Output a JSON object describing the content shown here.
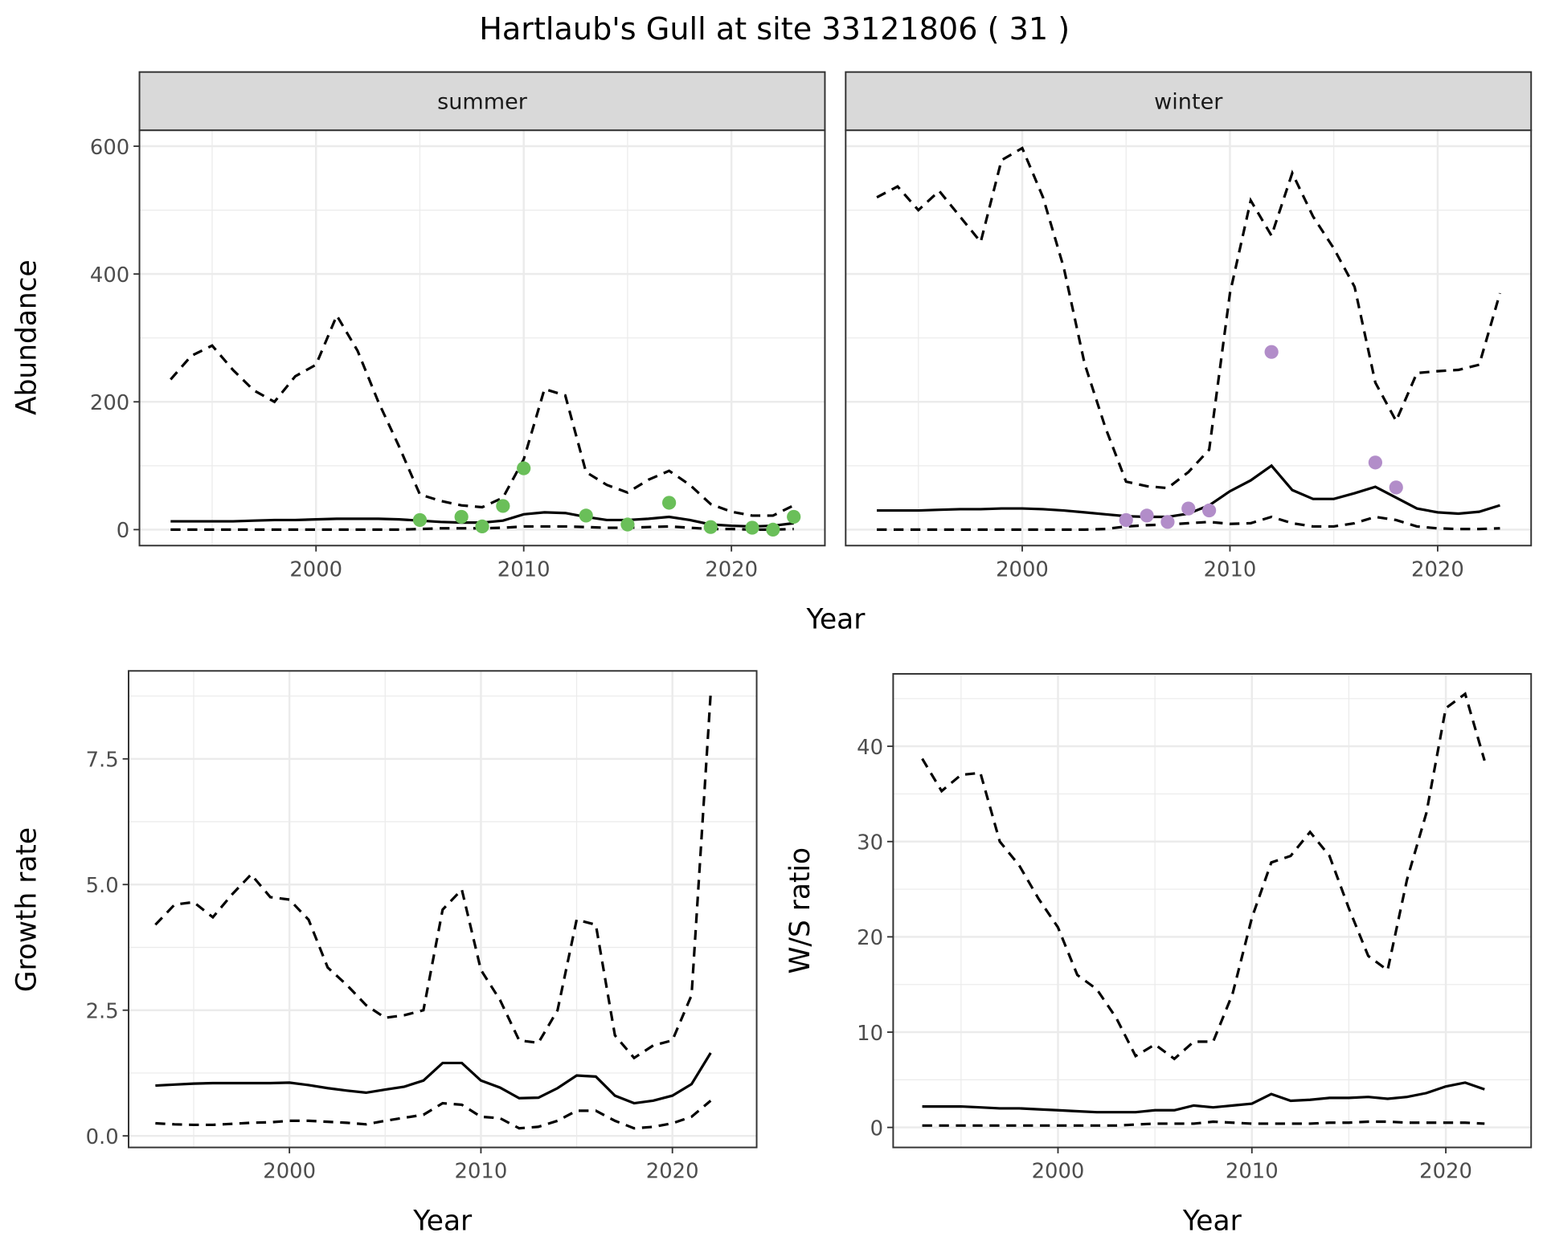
{
  "title": "Hartlaub's Gull at site 33121806 ( 31 )",
  "colors": {
    "summer_points": "#6abf59",
    "winter_points": "#b28dc9",
    "lines": "#000000",
    "strip_bg": "#d9d9d9"
  },
  "chart_data": [
    {
      "type": "line",
      "panel": "summer",
      "strip_label": "summer",
      "ylabel": "Abundance",
      "xlabel": "Year",
      "xlim": [
        1991.5,
        2024.5
      ],
      "ylim": [
        -25,
        625
      ],
      "xticks": [
        2000,
        2010,
        2020
      ],
      "yticks": [
        0,
        200,
        400,
        600
      ],
      "x": [
        1993,
        1994,
        1995,
        1996,
        1997,
        1998,
        1999,
        2000,
        2001,
        2002,
        2003,
        2004,
        2005,
        2006,
        2007,
        2008,
        2009,
        2010,
        2011,
        2012,
        2013,
        2014,
        2015,
        2016,
        2017,
        2018,
        2019,
        2020,
        2021,
        2022,
        2023
      ],
      "series": [
        {
          "name": "upper",
          "style": "dashed",
          "values": [
            235,
            272,
            288,
            250,
            218,
            200,
            240,
            258,
            335,
            280,
            200,
            130,
            55,
            45,
            38,
            35,
            50,
            110,
            220,
            210,
            90,
            70,
            58,
            78,
            92,
            70,
            40,
            28,
            22,
            22,
            38
          ]
        },
        {
          "name": "mean",
          "style": "solid",
          "values": [
            13,
            13,
            13,
            13,
            14,
            15,
            15,
            16,
            17,
            17,
            17,
            16,
            14,
            12,
            11,
            11,
            14,
            24,
            27,
            26,
            20,
            15,
            15,
            17,
            20,
            15,
            8,
            6,
            5,
            6,
            10
          ]
        },
        {
          "name": "lower",
          "style": "dashed",
          "values": [
            0,
            0,
            0,
            0,
            0,
            0,
            0,
            0,
            0,
            0,
            0,
            0,
            1,
            2,
            2,
            2,
            3,
            5,
            5,
            5,
            4,
            3,
            3,
            4,
            5,
            3,
            1,
            1,
            0,
            0,
            1
          ]
        }
      ],
      "points": {
        "x": [
          2005,
          2007,
          2008,
          2009,
          2010,
          2013,
          2015,
          2017,
          2019,
          2021,
          2022,
          2023
        ],
        "y": [
          15,
          20,
          5,
          37,
          96,
          22,
          8,
          42,
          4,
          3,
          0,
          20
        ]
      }
    },
    {
      "type": "line",
      "panel": "winter",
      "strip_label": "winter",
      "ylabel": "",
      "xlabel": "Year",
      "xlim": [
        1991.5,
        2024.5
      ],
      "ylim": [
        -25,
        625
      ],
      "xticks": [
        2000,
        2010,
        2020
      ],
      "yticks": [],
      "x": [
        1993,
        1994,
        1995,
        1996,
        1997,
        1998,
        1999,
        2000,
        2001,
        2002,
        2003,
        2004,
        2005,
        2006,
        2007,
        2008,
        2009,
        2010,
        2011,
        2012,
        2013,
        2014,
        2015,
        2016,
        2017,
        2018,
        2019,
        2020,
        2021,
        2022,
        2023
      ],
      "series": [
        {
          "name": "upper",
          "style": "dashed",
          "values": [
            520,
            537,
            500,
            530,
            490,
            450,
            578,
            597,
            520,
            410,
            260,
            160,
            75,
            68,
            65,
            90,
            125,
            370,
            515,
            460,
            558,
            490,
            440,
            380,
            230,
            170,
            245,
            248,
            250,
            258,
            370
          ]
        },
        {
          "name": "mean",
          "style": "solid",
          "values": [
            30,
            30,
            30,
            31,
            32,
            32,
            33,
            33,
            32,
            30,
            27,
            24,
            21,
            20,
            20,
            25,
            38,
            60,
            77,
            100,
            62,
            48,
            48,
            57,
            67,
            50,
            33,
            27,
            25,
            28,
            38
          ]
        },
        {
          "name": "lower",
          "style": "dashed",
          "values": [
            0,
            0,
            0,
            0,
            0,
            0,
            0,
            0,
            0,
            0,
            0,
            1,
            5,
            7,
            8,
            10,
            12,
            9,
            10,
            20,
            10,
            5,
            5,
            10,
            20,
            15,
            5,
            2,
            1,
            1,
            2
          ]
        }
      ],
      "points": {
        "x": [
          2005,
          2006,
          2007,
          2008,
          2009,
          2012,
          2017,
          2018
        ],
        "y": [
          15,
          22,
          12,
          33,
          30,
          278,
          105,
          66
        ]
      }
    },
    {
      "type": "line",
      "panel": "growth",
      "ylabel": "Growth rate",
      "xlabel": "Year",
      "xlim": [
        1991.6,
        2024.4
      ],
      "ylim": [
        -0.23,
        9.25
      ],
      "xticks": [
        2000,
        2010,
        2020
      ],
      "yticks": [
        0.0,
        2.5,
        5.0,
        7.5
      ],
      "x": [
        1993,
        1994,
        1995,
        1996,
        1997,
        1998,
        1999,
        2000,
        2001,
        2002,
        2003,
        2004,
        2005,
        2006,
        2007,
        2008,
        2009,
        2010,
        2011,
        2012,
        2013,
        2014,
        2015,
        2016,
        2017,
        2018,
        2019,
        2020,
        2021,
        2022
      ],
      "series": [
        {
          "name": "upper",
          "style": "dashed",
          "values": [
            4.2,
            4.6,
            4.65,
            4.35,
            4.8,
            5.2,
            4.75,
            4.7,
            4.3,
            3.35,
            3.0,
            2.6,
            2.35,
            2.4,
            2.5,
            4.5,
            4.9,
            3.3,
            2.7,
            1.9,
            1.85,
            2.5,
            4.3,
            4.2,
            2.0,
            1.55,
            1.8,
            1.9,
            2.8,
            8.8
          ]
        },
        {
          "name": "mean",
          "style": "solid",
          "values": [
            1.0,
            1.02,
            1.04,
            1.05,
            1.05,
            1.05,
            1.05,
            1.06,
            1.01,
            0.95,
            0.9,
            0.86,
            0.92,
            0.98,
            1.1,
            1.45,
            1.45,
            1.1,
            0.96,
            0.75,
            0.76,
            0.95,
            1.2,
            1.18,
            0.8,
            0.65,
            0.7,
            0.8,
            1.03,
            1.65
          ]
        },
        {
          "name": "lower",
          "style": "dashed",
          "values": [
            0.25,
            0.23,
            0.22,
            0.22,
            0.24,
            0.26,
            0.27,
            0.3,
            0.3,
            0.28,
            0.26,
            0.23,
            0.3,
            0.36,
            0.42,
            0.65,
            0.62,
            0.38,
            0.35,
            0.15,
            0.18,
            0.3,
            0.5,
            0.5,
            0.3,
            0.15,
            0.18,
            0.25,
            0.38,
            0.7
          ]
        }
      ]
    },
    {
      "type": "line",
      "panel": "ws_ratio",
      "ylabel": "W/S ratio",
      "xlabel": "Year",
      "xlim": [
        1991.5,
        2024.4
      ],
      "ylim": [
        -2.1,
        47.6
      ],
      "xticks": [
        2000,
        2010,
        2020
      ],
      "yticks": [
        0,
        10,
        20,
        30,
        40
      ],
      "x": [
        1993,
        1994,
        1995,
        1996,
        1997,
        1998,
        1999,
        2000,
        2001,
        2002,
        2003,
        2004,
        2005,
        2006,
        2007,
        2008,
        2009,
        2010,
        2011,
        2012,
        2013,
        2014,
        2015,
        2016,
        2017,
        2018,
        2019,
        2020,
        2021,
        2022
      ],
      "series": [
        {
          "name": "upper",
          "style": "dashed",
          "values": [
            38.7,
            35.3,
            37,
            37.2,
            30,
            27.5,
            24,
            21,
            16,
            14.5,
            11.5,
            7.5,
            8.7,
            7.2,
            9,
            9,
            14,
            22,
            27.8,
            28.5,
            31,
            28.5,
            23,
            18,
            16.5,
            26,
            33,
            44,
            45.5,
            38.5
          ]
        },
        {
          "name": "mean",
          "style": "solid",
          "values": [
            2.2,
            2.2,
            2.2,
            2.1,
            2.0,
            2.0,
            1.9,
            1.8,
            1.7,
            1.6,
            1.6,
            1.6,
            1.8,
            1.8,
            2.3,
            2.1,
            2.3,
            2.5,
            3.5,
            2.8,
            2.9,
            3.1,
            3.1,
            3.2,
            3.0,
            3.2,
            3.6,
            4.3,
            4.7,
            4.0
          ]
        },
        {
          "name": "lower",
          "style": "dashed",
          "values": [
            0.2,
            0.2,
            0.2,
            0.2,
            0.2,
            0.2,
            0.2,
            0.2,
            0.2,
            0.2,
            0.2,
            0.3,
            0.4,
            0.4,
            0.4,
            0.6,
            0.5,
            0.4,
            0.4,
            0.4,
            0.4,
            0.5,
            0.5,
            0.6,
            0.6,
            0.5,
            0.5,
            0.5,
            0.5,
            0.4
          ]
        }
      ]
    }
  ]
}
